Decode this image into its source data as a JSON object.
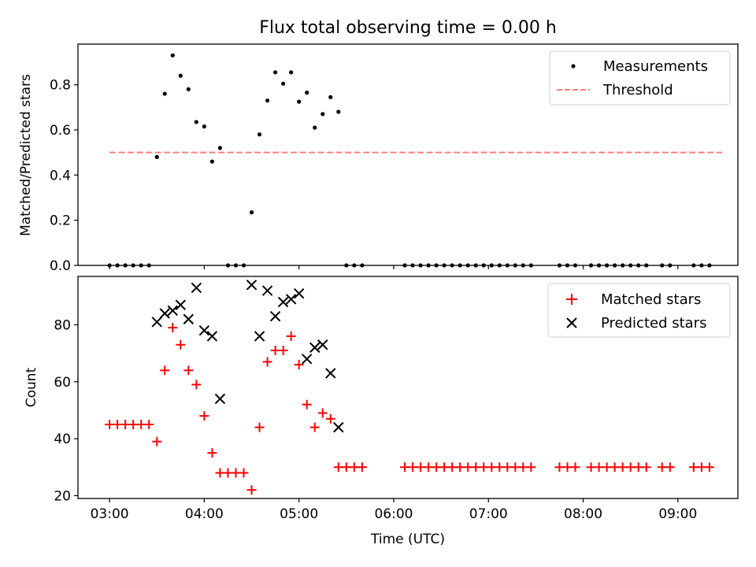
{
  "chart_data": [
    {
      "type": "scatter",
      "title": "Flux total observing time = 0.00 h",
      "ylabel": "Matched/Predicted stars",
      "xlabel": "",
      "xlim": [
        "02:40",
        "09:38"
      ],
      "ylim": [
        0,
        0.98
      ],
      "yticks": [
        0.0,
        0.2,
        0.4,
        0.6,
        0.8
      ],
      "ytick_labels": [
        "0.0",
        "0.2",
        "0.4",
        "0.6",
        "0.8"
      ],
      "legend": {
        "placement": "top-right"
      },
      "series": [
        {
          "name": "Measurements",
          "marker": "dot",
          "color": "#000000",
          "points": [
            [
              "03:00",
              0
            ],
            [
              "03:05",
              0
            ],
            [
              "03:10",
              0
            ],
            [
              "03:15",
              0
            ],
            [
              "03:20",
              0
            ],
            [
              "03:25",
              0
            ],
            [
              "03:30",
              0.48
            ],
            [
              "03:35",
              0.76
            ],
            [
              "03:40",
              0.93
            ],
            [
              "03:45",
              0.84
            ],
            [
              "03:50",
              0.78
            ],
            [
              "03:55",
              0.635
            ],
            [
              "04:00",
              0.615
            ],
            [
              "04:05",
              0.46
            ],
            [
              "04:10",
              0.52
            ],
            [
              "04:15",
              0
            ],
            [
              "04:20",
              0
            ],
            [
              "04:25",
              0
            ],
            [
              "04:30",
              0.235
            ],
            [
              "04:35",
              0.58
            ],
            [
              "04:40",
              0.73
            ],
            [
              "04:45",
              0.855
            ],
            [
              "04:50",
              0.805
            ],
            [
              "04:55",
              0.855
            ],
            [
              "05:00",
              0.725
            ],
            [
              "05:05",
              0.765
            ],
            [
              "05:10",
              0.61
            ],
            [
              "05:15",
              0.67
            ],
            [
              "05:20",
              0.745
            ],
            [
              "05:25",
              0.68
            ],
            [
              "05:30",
              0
            ],
            [
              "05:35",
              0
            ],
            [
              "05:40",
              0
            ],
            [
              "06:07",
              0
            ],
            [
              "06:12",
              0
            ],
            [
              "06:17",
              0
            ],
            [
              "06:22",
              0
            ],
            [
              "06:27",
              0
            ],
            [
              "06:32",
              0
            ],
            [
              "06:37",
              0
            ],
            [
              "06:42",
              0
            ],
            [
              "06:47",
              0
            ],
            [
              "06:52",
              0
            ],
            [
              "06:57",
              0
            ],
            [
              "07:02",
              0
            ],
            [
              "07:07",
              0
            ],
            [
              "07:12",
              0
            ],
            [
              "07:17",
              0
            ],
            [
              "07:22",
              0
            ],
            [
              "07:27",
              0
            ],
            [
              "07:45",
              0
            ],
            [
              "07:50",
              0
            ],
            [
              "07:55",
              0
            ],
            [
              "08:05",
              0
            ],
            [
              "08:10",
              0
            ],
            [
              "08:15",
              0
            ],
            [
              "08:20",
              0
            ],
            [
              "08:25",
              0
            ],
            [
              "08:30",
              0
            ],
            [
              "08:35",
              0
            ],
            [
              "08:40",
              0
            ],
            [
              "08:50",
              0
            ],
            [
              "08:55",
              0
            ],
            [
              "09:10",
              0
            ],
            [
              "09:15",
              0
            ],
            [
              "09:20",
              0
            ]
          ]
        },
        {
          "name": "Threshold",
          "kind": "line",
          "style": "dashed",
          "color": "#ff7f7f",
          "points": [
            [
              "03:00",
              0.5
            ],
            [
              "09:28",
              0.5
            ]
          ]
        }
      ]
    },
    {
      "type": "scatter",
      "title": "",
      "ylabel": "Count",
      "xlabel": "Time (UTC)",
      "xlim": [
        "02:40",
        "09:38"
      ],
      "ylim": [
        19,
        97
      ],
      "yticks": [
        20,
        40,
        60,
        80
      ],
      "ytick_labels": [
        "20",
        "40",
        "60",
        "80"
      ],
      "xticks": [
        "03:00",
        "04:00",
        "05:00",
        "06:00",
        "07:00",
        "08:00",
        "09:00"
      ],
      "xtick_labels": [
        "03:00",
        "04:00",
        "05:00",
        "06:00",
        "07:00",
        "08:00",
        "09:00"
      ],
      "legend": {
        "placement": "top-right"
      },
      "series": [
        {
          "name": "Matched stars",
          "marker": "plus",
          "color": "#ff0000",
          "points": [
            [
              "03:00",
              45
            ],
            [
              "03:05",
              45
            ],
            [
              "03:10",
              45
            ],
            [
              "03:15",
              45
            ],
            [
              "03:20",
              45
            ],
            [
              "03:25",
              45
            ],
            [
              "03:30",
              39
            ],
            [
              "03:35",
              64
            ],
            [
              "03:40",
              79
            ],
            [
              "03:45",
              73
            ],
            [
              "03:50",
              64
            ],
            [
              "03:55",
              59
            ],
            [
              "04:00",
              48
            ],
            [
              "04:05",
              35
            ],
            [
              "04:10",
              28
            ],
            [
              "04:15",
              28
            ],
            [
              "04:20",
              28
            ],
            [
              "04:25",
              28
            ],
            [
              "04:30",
              22
            ],
            [
              "04:35",
              44
            ],
            [
              "04:40",
              67
            ],
            [
              "04:45",
              71
            ],
            [
              "04:50",
              71
            ],
            [
              "04:55",
              76
            ],
            [
              "05:00",
              66
            ],
            [
              "05:05",
              52
            ],
            [
              "05:10",
              44
            ],
            [
              "05:15",
              49
            ],
            [
              "05:20",
              47
            ],
            [
              "05:25",
              30
            ],
            [
              "05:30",
              30
            ],
            [
              "05:35",
              30
            ],
            [
              "05:40",
              30
            ],
            [
              "06:07",
              30
            ],
            [
              "06:12",
              30
            ],
            [
              "06:17",
              30
            ],
            [
              "06:22",
              30
            ],
            [
              "06:27",
              30
            ],
            [
              "06:32",
              30
            ],
            [
              "06:37",
              30
            ],
            [
              "06:42",
              30
            ],
            [
              "06:47",
              30
            ],
            [
              "06:52",
              30
            ],
            [
              "06:57",
              30
            ],
            [
              "07:02",
              30
            ],
            [
              "07:07",
              30
            ],
            [
              "07:12",
              30
            ],
            [
              "07:17",
              30
            ],
            [
              "07:22",
              30
            ],
            [
              "07:27",
              30
            ],
            [
              "07:45",
              30
            ],
            [
              "07:50",
              30
            ],
            [
              "07:55",
              30
            ],
            [
              "08:05",
              30
            ],
            [
              "08:10",
              30
            ],
            [
              "08:15",
              30
            ],
            [
              "08:20",
              30
            ],
            [
              "08:25",
              30
            ],
            [
              "08:30",
              30
            ],
            [
              "08:35",
              30
            ],
            [
              "08:40",
              30
            ],
            [
              "08:50",
              30
            ],
            [
              "08:55",
              30
            ],
            [
              "09:10",
              30
            ],
            [
              "09:15",
              30
            ],
            [
              "09:20",
              30
            ]
          ]
        },
        {
          "name": "Predicted stars",
          "marker": "x",
          "color": "#000000",
          "points": [
            [
              "03:30",
              81
            ],
            [
              "03:35",
              84
            ],
            [
              "03:40",
              85
            ],
            [
              "03:45",
              87
            ],
            [
              "03:50",
              82
            ],
            [
              "03:55",
              93
            ],
            [
              "04:00",
              78
            ],
            [
              "04:05",
              76
            ],
            [
              "04:10",
              54
            ],
            [
              "04:30",
              94
            ],
            [
              "04:35",
              76
            ],
            [
              "04:40",
              92
            ],
            [
              "04:45",
              83
            ],
            [
              "04:50",
              88
            ],
            [
              "04:55",
              89
            ],
            [
              "05:00",
              91
            ],
            [
              "05:05",
              68
            ],
            [
              "05:10",
              72
            ],
            [
              "05:15",
              73
            ],
            [
              "05:20",
              63
            ],
            [
              "05:25",
              44
            ]
          ]
        }
      ]
    }
  ]
}
